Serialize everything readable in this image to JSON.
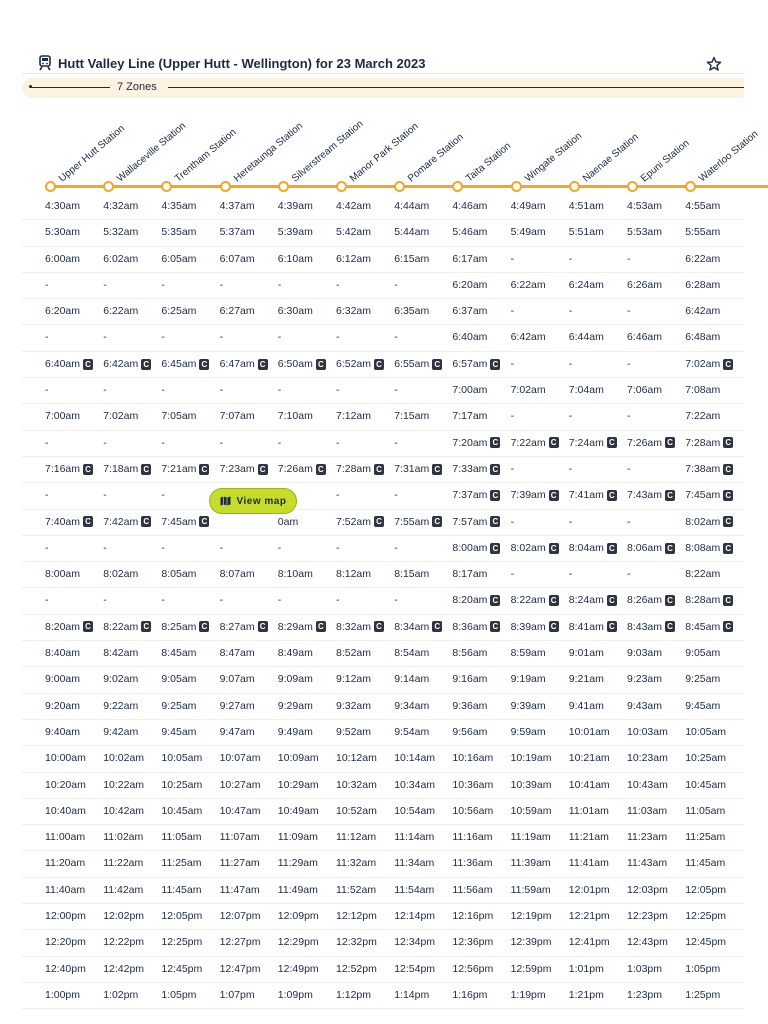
{
  "header": {
    "title": "Hutt Valley Line (Upper Hutt - Wellington) for 23 March 2023",
    "train_icon": "train-icon",
    "favorite_icon": "star-icon"
  },
  "zones": {
    "label": "7 Zones"
  },
  "stations": [
    "Upper Hutt Station",
    "Wallaceville Station",
    "Trentham Station",
    "Heretaunga Station",
    "Silverstream Station",
    "Manor Park Station",
    "Pomare Station",
    "Taita Station",
    "Wingate Station",
    "Naenae Station",
    "Epuni Station",
    "Waterloo Station"
  ],
  "view_map": {
    "label": "View map",
    "icon": "map-icon"
  },
  "badge_glyph": "C",
  "colors": {
    "accent": "#f5a623",
    "view_map": "#c5dc2a",
    "text": "#1d2a44"
  },
  "rows": [
    [
      [
        "4:30am",
        0
      ],
      [
        "4:32am",
        0
      ],
      [
        "4:35am",
        0
      ],
      [
        "4:37am",
        0
      ],
      [
        "4:39am",
        0
      ],
      [
        "4:42am",
        0
      ],
      [
        "4:44am",
        0
      ],
      [
        "4:46am",
        0
      ],
      [
        "4:49am",
        0
      ],
      [
        "4:51am",
        0
      ],
      [
        "4:53am",
        0
      ],
      [
        "4:55am",
        0
      ]
    ],
    [
      [
        "5:30am",
        0
      ],
      [
        "5:32am",
        0
      ],
      [
        "5:35am",
        0
      ],
      [
        "5:37am",
        0
      ],
      [
        "5:39am",
        0
      ],
      [
        "5:42am",
        0
      ],
      [
        "5:44am",
        0
      ],
      [
        "5:46am",
        0
      ],
      [
        "5:49am",
        0
      ],
      [
        "5:51am",
        0
      ],
      [
        "5:53am",
        0
      ],
      [
        "5:55am",
        0
      ]
    ],
    [
      [
        "6:00am",
        0
      ],
      [
        "6:02am",
        0
      ],
      [
        "6:05am",
        0
      ],
      [
        "6:07am",
        0
      ],
      [
        "6:10am",
        0
      ],
      [
        "6:12am",
        0
      ],
      [
        "6:15am",
        0
      ],
      [
        "6:17am",
        0
      ],
      [
        "-",
        0
      ],
      [
        "-",
        0
      ],
      [
        "-",
        0
      ],
      [
        "6:22am",
        0
      ]
    ],
    [
      [
        "-",
        0
      ],
      [
        "-",
        0
      ],
      [
        "-",
        0
      ],
      [
        "-",
        0
      ],
      [
        "-",
        0
      ],
      [
        "-",
        0
      ],
      [
        "-",
        0
      ],
      [
        "6:20am",
        0
      ],
      [
        "6:22am",
        0
      ],
      [
        "6:24am",
        0
      ],
      [
        "6:26am",
        0
      ],
      [
        "6:28am",
        0
      ]
    ],
    [
      [
        "6:20am",
        0
      ],
      [
        "6:22am",
        0
      ],
      [
        "6:25am",
        0
      ],
      [
        "6:27am",
        0
      ],
      [
        "6:30am",
        0
      ],
      [
        "6:32am",
        0
      ],
      [
        "6:35am",
        0
      ],
      [
        "6:37am",
        0
      ],
      [
        "-",
        0
      ],
      [
        "-",
        0
      ],
      [
        "-",
        0
      ],
      [
        "6:42am",
        0
      ]
    ],
    [
      [
        "-",
        0
      ],
      [
        "-",
        0
      ],
      [
        "-",
        0
      ],
      [
        "-",
        0
      ],
      [
        "-",
        0
      ],
      [
        "-",
        0
      ],
      [
        "-",
        0
      ],
      [
        "6:40am",
        0
      ],
      [
        "6:42am",
        0
      ],
      [
        "6:44am",
        0
      ],
      [
        "6:46am",
        0
      ],
      [
        "6:48am",
        0
      ]
    ],
    [
      [
        "6:40am",
        1
      ],
      [
        "6:42am",
        1
      ],
      [
        "6:45am",
        1
      ],
      [
        "6:47am",
        1
      ],
      [
        "6:50am",
        1
      ],
      [
        "6:52am",
        1
      ],
      [
        "6:55am",
        1
      ],
      [
        "6:57am",
        1
      ],
      [
        "-",
        0
      ],
      [
        "-",
        0
      ],
      [
        "-",
        0
      ],
      [
        "7:02am",
        1
      ]
    ],
    [
      [
        "-",
        0
      ],
      [
        "-",
        0
      ],
      [
        "-",
        0
      ],
      [
        "-",
        0
      ],
      [
        "-",
        0
      ],
      [
        "-",
        0
      ],
      [
        "-",
        0
      ],
      [
        "7:00am",
        0
      ],
      [
        "7:02am",
        0
      ],
      [
        "7:04am",
        0
      ],
      [
        "7:06am",
        0
      ],
      [
        "7:08am",
        0
      ]
    ],
    [
      [
        "7:00am",
        0
      ],
      [
        "7:02am",
        0
      ],
      [
        "7:05am",
        0
      ],
      [
        "7:07am",
        0
      ],
      [
        "7:10am",
        0
      ],
      [
        "7:12am",
        0
      ],
      [
        "7:15am",
        0
      ],
      [
        "7:17am",
        0
      ],
      [
        "-",
        0
      ],
      [
        "-",
        0
      ],
      [
        "-",
        0
      ],
      [
        "7:22am",
        0
      ]
    ],
    [
      [
        "-",
        0
      ],
      [
        "-",
        0
      ],
      [
        "-",
        0
      ],
      [
        "-",
        0
      ],
      [
        "-",
        0
      ],
      [
        "-",
        0
      ],
      [
        "-",
        0
      ],
      [
        "7:20am",
        1
      ],
      [
        "7:22am",
        1
      ],
      [
        "7:24am",
        1
      ],
      [
        "7:26am",
        1
      ],
      [
        "7:28am",
        1
      ]
    ],
    [
      [
        "7:16am",
        1
      ],
      [
        "7:18am",
        1
      ],
      [
        "7:21am",
        1
      ],
      [
        "7:23am",
        1
      ],
      [
        "7:26am",
        1
      ],
      [
        "7:28am",
        1
      ],
      [
        "7:31am",
        1
      ],
      [
        "7:33am",
        1
      ],
      [
        "-",
        0
      ],
      [
        "-",
        0
      ],
      [
        "-",
        0
      ],
      [
        "7:38am",
        1
      ]
    ],
    [
      [
        "-",
        0
      ],
      [
        "-",
        0
      ],
      [
        "-",
        0
      ],
      [
        "",
        0
      ],
      [
        "-",
        0
      ],
      [
        "-",
        0
      ],
      [
        "-",
        0
      ],
      [
        "7:37am",
        1
      ],
      [
        "7:39am",
        1
      ],
      [
        "7:41am",
        1
      ],
      [
        "7:43am",
        1
      ],
      [
        "7:45am",
        1
      ]
    ],
    [
      [
        "7:40am",
        1
      ],
      [
        "7:42am",
        1
      ],
      [
        "7:45am",
        1
      ],
      [
        "",
        0
      ],
      [
        "0am",
        0
      ],
      [
        "7:52am",
        1
      ],
      [
        "7:55am",
        1
      ],
      [
        "7:57am",
        1
      ],
      [
        "-",
        0
      ],
      [
        "-",
        0
      ],
      [
        "-",
        0
      ],
      [
        "8:02am",
        1
      ]
    ],
    [
      [
        "-",
        0
      ],
      [
        "-",
        0
      ],
      [
        "-",
        0
      ],
      [
        "-",
        0
      ],
      [
        "-",
        0
      ],
      [
        "-",
        0
      ],
      [
        "-",
        0
      ],
      [
        "8:00am",
        1
      ],
      [
        "8:02am",
        1
      ],
      [
        "8:04am",
        1
      ],
      [
        "8:06am",
        1
      ],
      [
        "8:08am",
        1
      ]
    ],
    [
      [
        "8:00am",
        0
      ],
      [
        "8:02am",
        0
      ],
      [
        "8:05am",
        0
      ],
      [
        "8:07am",
        0
      ],
      [
        "8:10am",
        0
      ],
      [
        "8:12am",
        0
      ],
      [
        "8:15am",
        0
      ],
      [
        "8:17am",
        0
      ],
      [
        "-",
        0
      ],
      [
        "-",
        0
      ],
      [
        "-",
        0
      ],
      [
        "8:22am",
        0
      ]
    ],
    [
      [
        "-",
        0
      ],
      [
        "-",
        0
      ],
      [
        "-",
        0
      ],
      [
        "-",
        0
      ],
      [
        "-",
        0
      ],
      [
        "-",
        0
      ],
      [
        "-",
        0
      ],
      [
        "8:20am",
        1
      ],
      [
        "8:22am",
        1
      ],
      [
        "8:24am",
        1
      ],
      [
        "8:26am",
        1
      ],
      [
        "8:28am",
        1
      ]
    ],
    [
      [
        "8:20am",
        1
      ],
      [
        "8:22am",
        1
      ],
      [
        "8:25am",
        1
      ],
      [
        "8:27am",
        1
      ],
      [
        "8:29am",
        1
      ],
      [
        "8:32am",
        1
      ],
      [
        "8:34am",
        1
      ],
      [
        "8:36am",
        1
      ],
      [
        "8:39am",
        1
      ],
      [
        "8:41am",
        1
      ],
      [
        "8:43am",
        1
      ],
      [
        "8:45am",
        1
      ]
    ],
    [
      [
        "8:40am",
        0
      ],
      [
        "8:42am",
        0
      ],
      [
        "8:45am",
        0
      ],
      [
        "8:47am",
        0
      ],
      [
        "8:49am",
        0
      ],
      [
        "8:52am",
        0
      ],
      [
        "8:54am",
        0
      ],
      [
        "8:56am",
        0
      ],
      [
        "8:59am",
        0
      ],
      [
        "9:01am",
        0
      ],
      [
        "9:03am",
        0
      ],
      [
        "9:05am",
        0
      ]
    ],
    [
      [
        "9:00am",
        0
      ],
      [
        "9:02am",
        0
      ],
      [
        "9:05am",
        0
      ],
      [
        "9:07am",
        0
      ],
      [
        "9:09am",
        0
      ],
      [
        "9:12am",
        0
      ],
      [
        "9:14am",
        0
      ],
      [
        "9:16am",
        0
      ],
      [
        "9:19am",
        0
      ],
      [
        "9:21am",
        0
      ],
      [
        "9:23am",
        0
      ],
      [
        "9:25am",
        0
      ]
    ],
    [
      [
        "9:20am",
        0
      ],
      [
        "9:22am",
        0
      ],
      [
        "9:25am",
        0
      ],
      [
        "9:27am",
        0
      ],
      [
        "9:29am",
        0
      ],
      [
        "9:32am",
        0
      ],
      [
        "9:34am",
        0
      ],
      [
        "9:36am",
        0
      ],
      [
        "9:39am",
        0
      ],
      [
        "9:41am",
        0
      ],
      [
        "9:43am",
        0
      ],
      [
        "9:45am",
        0
      ]
    ],
    [
      [
        "9:40am",
        0
      ],
      [
        "9:42am",
        0
      ],
      [
        "9:45am",
        0
      ],
      [
        "9:47am",
        0
      ],
      [
        "9:49am",
        0
      ],
      [
        "9:52am",
        0
      ],
      [
        "9:54am",
        0
      ],
      [
        "9:56am",
        0
      ],
      [
        "9:59am",
        0
      ],
      [
        "10:01am",
        0
      ],
      [
        "10:03am",
        0
      ],
      [
        "10:05am",
        0
      ]
    ],
    [
      [
        "10:00am",
        0
      ],
      [
        "10:02am",
        0
      ],
      [
        "10:05am",
        0
      ],
      [
        "10:07am",
        0
      ],
      [
        "10:09am",
        0
      ],
      [
        "10:12am",
        0
      ],
      [
        "10:14am",
        0
      ],
      [
        "10:16am",
        0
      ],
      [
        "10:19am",
        0
      ],
      [
        "10:21am",
        0
      ],
      [
        "10:23am",
        0
      ],
      [
        "10:25am",
        0
      ]
    ],
    [
      [
        "10:20am",
        0
      ],
      [
        "10:22am",
        0
      ],
      [
        "10:25am",
        0
      ],
      [
        "10:27am",
        0
      ],
      [
        "10:29am",
        0
      ],
      [
        "10:32am",
        0
      ],
      [
        "10:34am",
        0
      ],
      [
        "10:36am",
        0
      ],
      [
        "10:39am",
        0
      ],
      [
        "10:41am",
        0
      ],
      [
        "10:43am",
        0
      ],
      [
        "10:45am",
        0
      ]
    ],
    [
      [
        "10:40am",
        0
      ],
      [
        "10:42am",
        0
      ],
      [
        "10:45am",
        0
      ],
      [
        "10:47am",
        0
      ],
      [
        "10:49am",
        0
      ],
      [
        "10:52am",
        0
      ],
      [
        "10:54am",
        0
      ],
      [
        "10:56am",
        0
      ],
      [
        "10:59am",
        0
      ],
      [
        "11:01am",
        0
      ],
      [
        "11:03am",
        0
      ],
      [
        "11:05am",
        0
      ]
    ],
    [
      [
        "11:00am",
        0
      ],
      [
        "11:02am",
        0
      ],
      [
        "11:05am",
        0
      ],
      [
        "11:07am",
        0
      ],
      [
        "11:09am",
        0
      ],
      [
        "11:12am",
        0
      ],
      [
        "11:14am",
        0
      ],
      [
        "11:16am",
        0
      ],
      [
        "11:19am",
        0
      ],
      [
        "11:21am",
        0
      ],
      [
        "11:23am",
        0
      ],
      [
        "11:25am",
        0
      ]
    ],
    [
      [
        "11:20am",
        0
      ],
      [
        "11:22am",
        0
      ],
      [
        "11:25am",
        0
      ],
      [
        "11:27am",
        0
      ],
      [
        "11:29am",
        0
      ],
      [
        "11:32am",
        0
      ],
      [
        "11:34am",
        0
      ],
      [
        "11:36am",
        0
      ],
      [
        "11:39am",
        0
      ],
      [
        "11:41am",
        0
      ],
      [
        "11:43am",
        0
      ],
      [
        "11:45am",
        0
      ]
    ],
    [
      [
        "11:40am",
        0
      ],
      [
        "11:42am",
        0
      ],
      [
        "11:45am",
        0
      ],
      [
        "11:47am",
        0
      ],
      [
        "11:49am",
        0
      ],
      [
        "11:52am",
        0
      ],
      [
        "11:54am",
        0
      ],
      [
        "11:56am",
        0
      ],
      [
        "11:59am",
        0
      ],
      [
        "12:01pm",
        0
      ],
      [
        "12:03pm",
        0
      ],
      [
        "12:05pm",
        0
      ]
    ],
    [
      [
        "12:00pm",
        0
      ],
      [
        "12:02pm",
        0
      ],
      [
        "12:05pm",
        0
      ],
      [
        "12:07pm",
        0
      ],
      [
        "12:09pm",
        0
      ],
      [
        "12:12pm",
        0
      ],
      [
        "12:14pm",
        0
      ],
      [
        "12:16pm",
        0
      ],
      [
        "12:19pm",
        0
      ],
      [
        "12:21pm",
        0
      ],
      [
        "12:23pm",
        0
      ],
      [
        "12:25pm",
        0
      ]
    ],
    [
      [
        "12:20pm",
        0
      ],
      [
        "12:22pm",
        0
      ],
      [
        "12:25pm",
        0
      ],
      [
        "12:27pm",
        0
      ],
      [
        "12:29pm",
        0
      ],
      [
        "12:32pm",
        0
      ],
      [
        "12:34pm",
        0
      ],
      [
        "12:36pm",
        0
      ],
      [
        "12:39pm",
        0
      ],
      [
        "12:41pm",
        0
      ],
      [
        "12:43pm",
        0
      ],
      [
        "12:45pm",
        0
      ]
    ],
    [
      [
        "12:40pm",
        0
      ],
      [
        "12:42pm",
        0
      ],
      [
        "12:45pm",
        0
      ],
      [
        "12:47pm",
        0
      ],
      [
        "12:49pm",
        0
      ],
      [
        "12:52pm",
        0
      ],
      [
        "12:54pm",
        0
      ],
      [
        "12:56pm",
        0
      ],
      [
        "12:59pm",
        0
      ],
      [
        "1:01pm",
        0
      ],
      [
        "1:03pm",
        0
      ],
      [
        "1:05pm",
        0
      ]
    ],
    [
      [
        "1:00pm",
        0
      ],
      [
        "1:02pm",
        0
      ],
      [
        "1:05pm",
        0
      ],
      [
        "1:07pm",
        0
      ],
      [
        "1:09pm",
        0
      ],
      [
        "1:12pm",
        0
      ],
      [
        "1:14pm",
        0
      ],
      [
        "1:16pm",
        0
      ],
      [
        "1:19pm",
        0
      ],
      [
        "1:21pm",
        0
      ],
      [
        "1:23pm",
        0
      ],
      [
        "1:25pm",
        0
      ]
    ]
  ]
}
